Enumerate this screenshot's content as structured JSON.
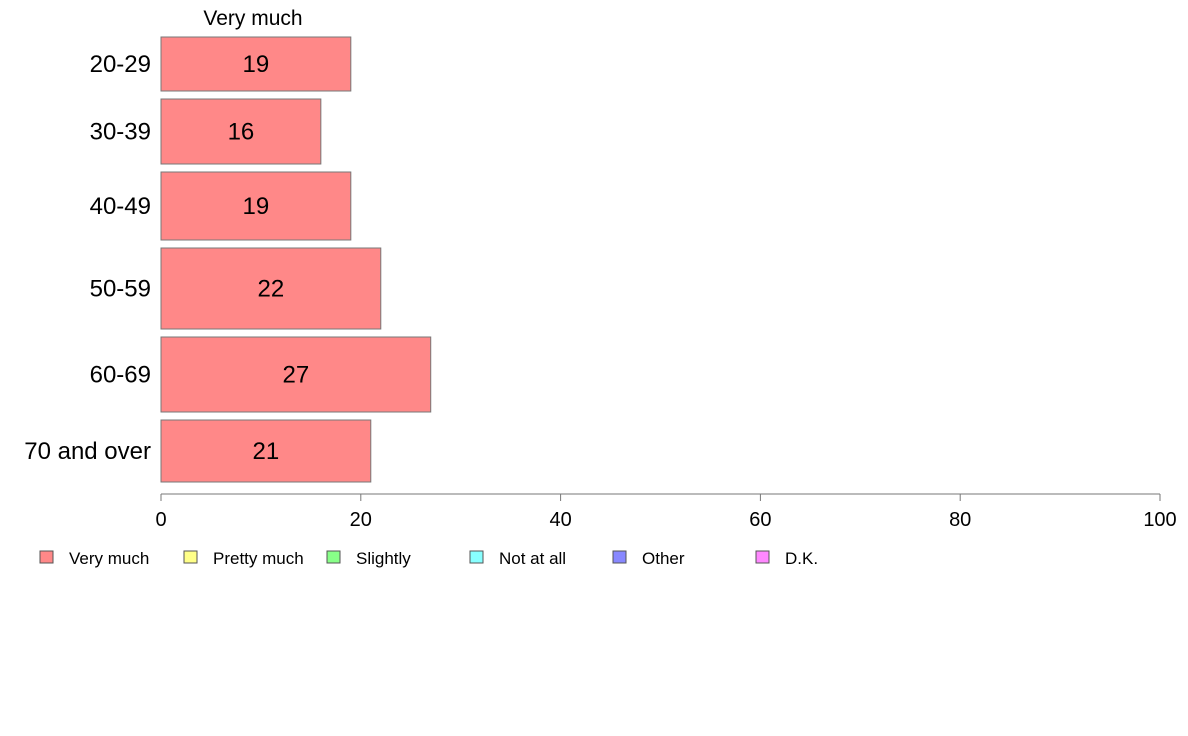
{
  "chart_data": {
    "type": "bar",
    "orientation": "horizontal",
    "stacked": true,
    "column_header": "Very much",
    "categories": [
      "20-29",
      "30-39",
      "40-49",
      "50-59",
      "60-69",
      "70 and over"
    ],
    "series": [
      {
        "name": "Very much",
        "color": "#ff8888",
        "values": [
          19,
          16,
          19,
          22,
          27,
          21
        ]
      }
    ],
    "xlim": [
      0,
      100
    ],
    "xticks": [
      0,
      20,
      40,
      60,
      80,
      100
    ],
    "grid": false,
    "legend": {
      "placement": "bottom-left",
      "items": [
        {
          "label": "Very much",
          "color": "#ff8888"
        },
        {
          "label": "Pretty much",
          "color": "#ffff88"
        },
        {
          "label": "Slightly",
          "color": "#88ff88"
        },
        {
          "label": "Not at all",
          "color": "#88ffff"
        },
        {
          "label": "Other",
          "color": "#8888ff"
        },
        {
          "label": "D.K.",
          "color": "#ff88ff"
        }
      ]
    }
  }
}
